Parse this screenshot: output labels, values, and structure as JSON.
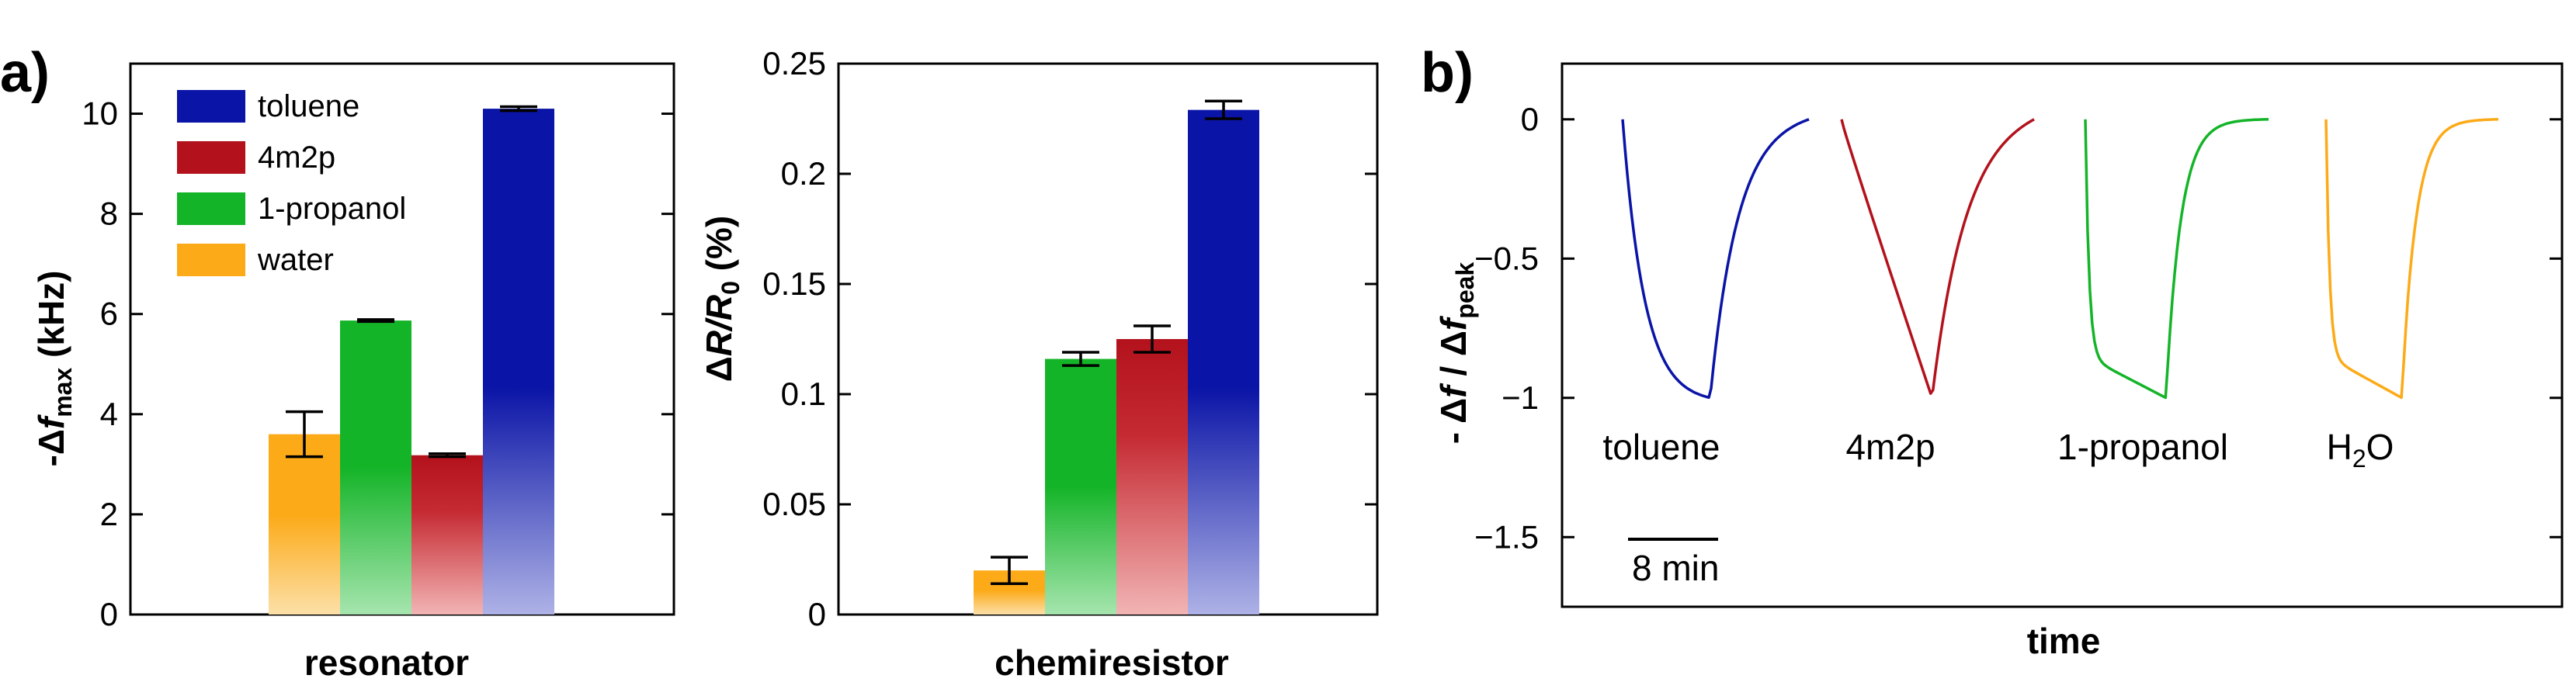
{
  "colors": {
    "toluene": "#0a14a6",
    "4m2p": "#b3121c",
    "1-propanol": "#14b428",
    "water": "#fcaa18"
  },
  "chart_data": [
    {
      "type": "bar",
      "panel": "a)",
      "xlabel": "resonator",
      "ylabel_parts": {
        "prefix": "-Δ",
        "var": "f",
        "sub": "max",
        "suffix": " (kHz)"
      },
      "ylim": [
        0,
        11
      ],
      "yticks": [
        0,
        2,
        4,
        6,
        8,
        10
      ],
      "ytick_labels": [
        "0",
        "2",
        "4",
        "6",
        "8",
        "10"
      ],
      "legend": [
        "toluene",
        "4m2p",
        "1-propanol",
        "water"
      ],
      "legend_position": "top-left",
      "bars": [
        {
          "name": "water",
          "value": 3.6,
          "error": 0.45
        },
        {
          "name": "1-propanol",
          "value": 5.87,
          "error": 0.02
        },
        {
          "name": "4m2p",
          "value": 3.18,
          "error": 0.03
        },
        {
          "name": "toluene",
          "value": 10.1,
          "error": 0.04
        }
      ]
    },
    {
      "type": "bar",
      "xlabel": "chemiresistor",
      "ylabel_parts": {
        "prefix": "Δ",
        "var": "R",
        "slash": "/",
        "var2": "R",
        "sub": "0",
        "suffix": " (%)"
      },
      "ylim": [
        0,
        0.25
      ],
      "yticks": [
        0,
        0.05,
        0.1,
        0.15,
        0.2,
        0.25
      ],
      "ytick_labels": [
        "0",
        "0.05",
        "0.1",
        "0.15",
        "0.2",
        "0.25"
      ],
      "bars": [
        {
          "name": "water",
          "value": 0.02,
          "error": 0.006
        },
        {
          "name": "1-propanol",
          "value": 0.116,
          "error": 0.003
        },
        {
          "name": "4m2p",
          "value": 0.125,
          "error": 0.006
        },
        {
          "name": "toluene",
          "value": 0.229,
          "error": 0.004
        }
      ]
    },
    {
      "type": "line",
      "panel": "b)",
      "xlabel": "time",
      "ylabel_parts": {
        "prefix": "- Δ",
        "var": "f",
        "mid": " / Δ",
        "var2": "f",
        "sub": "peak"
      },
      "ylim": [
        -1.75,
        0.2
      ],
      "yticks": [
        0,
        -0.5,
        -1,
        -1.5
      ],
      "ytick_labels": [
        "0",
        "−0.5",
        "−1",
        "−1.5"
      ],
      "scale_bar": "8 min",
      "series": [
        {
          "name": "toluene",
          "label": "toluene",
          "shape": "fast-drop-slow-recover"
        },
        {
          "name": "4m2p",
          "label": "4m2p",
          "shape": "linear-drop-recover"
        },
        {
          "name": "1-propanol",
          "label": "1-propanol",
          "shape": "step-drop-fast-recover"
        },
        {
          "name": "water",
          "label_parts": {
            "a": "H",
            "sub": "2",
            "b": "O"
          },
          "shape": "step-drop-fast-recover"
        }
      ]
    }
  ]
}
